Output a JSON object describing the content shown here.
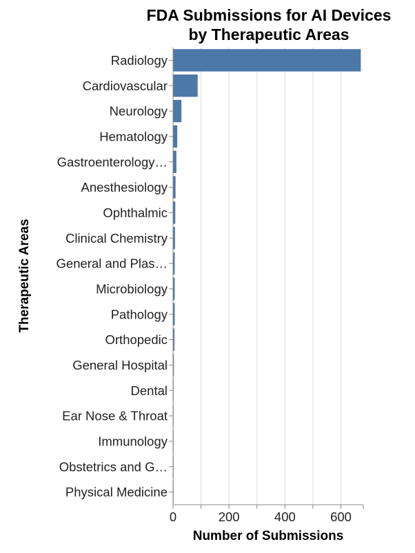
{
  "chart_data": {
    "type": "bar",
    "orientation": "horizontal",
    "title": [
      "FDA Submissions for AI Devices",
      "by Therapeutic Areas"
    ],
    "xlabel": "Number of Submissions",
    "ylabel": "Therapeutic Areas",
    "xlim": [
      0,
      680
    ],
    "xticks": [
      0,
      200,
      400,
      600
    ],
    "grid": true,
    "bar_color": "#4c78a8",
    "categories": [
      "Radiology",
      "Cardiovascular",
      "Neurology",
      "Hematology",
      "Gastroenterology…",
      "Anesthesiology",
      "Ophthalmic",
      "Clinical Chemistry",
      "General and Plas…",
      "Microbiology",
      "Pathology",
      "Orthopedic",
      "General Hospital",
      "Dental",
      "Ear Nose & Throat",
      "Immunology",
      "Obstetrics and G…",
      "Physical Medicine"
    ],
    "values": [
      671,
      88,
      30,
      15,
      12,
      9,
      8,
      7,
      6,
      6,
      6,
      5,
      3,
      2,
      2,
      2,
      1,
      1
    ]
  }
}
